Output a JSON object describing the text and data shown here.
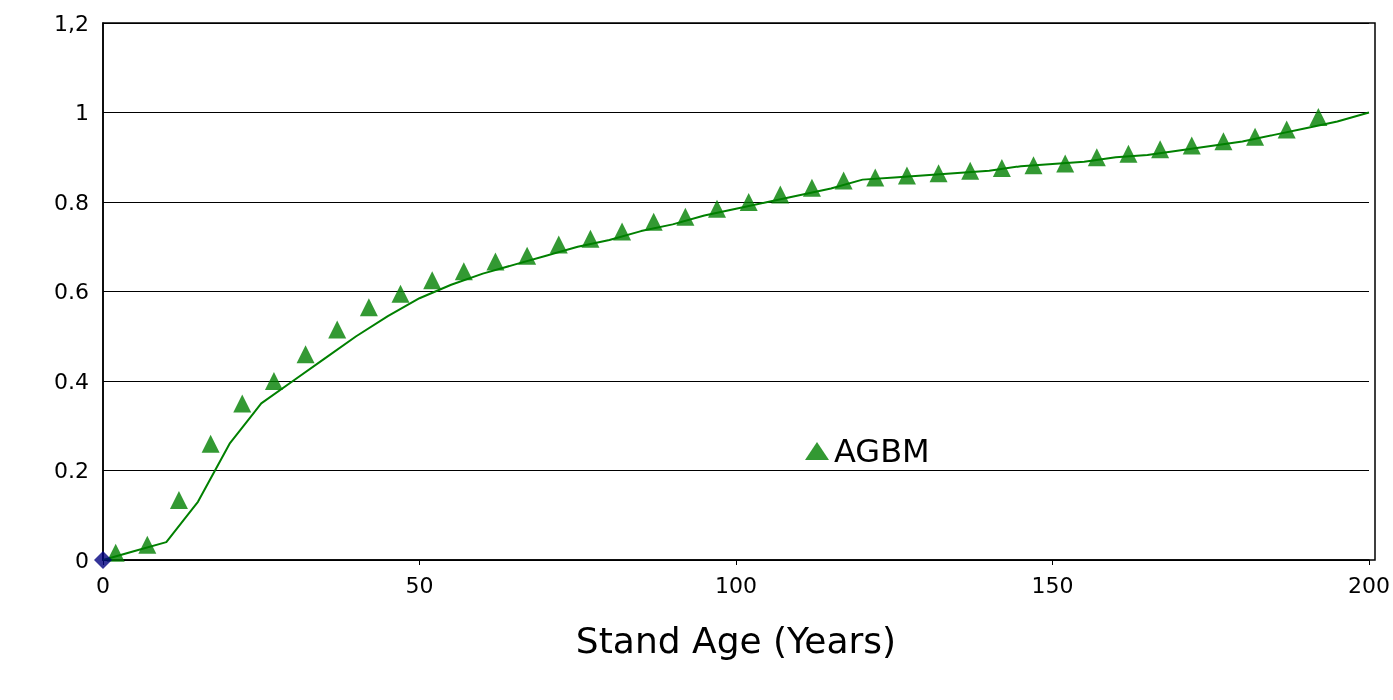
{
  "chart_data": {
    "type": "scatter",
    "xlabel": "Stand Age (Years)",
    "xlim": [
      0,
      200
    ],
    "xticks": [
      0,
      50,
      100,
      150,
      200
    ],
    "ylim": [
      0,
      1.2
    ],
    "yticks": [
      0,
      0.2,
      0.4,
      0.6,
      0.8,
      1,
      {
        "value": 1.2,
        "label": "1,2"
      }
    ],
    "grid": "y",
    "legend": "bottom right",
    "series": [
      {
        "name": "AGBM",
        "marker": "triangle",
        "color": "#008000",
        "x": [
          2,
          7,
          12,
          17,
          22,
          27,
          32,
          37,
          42,
          47,
          52,
          57,
          62,
          67,
          72,
          77,
          82,
          87,
          92,
          97,
          102,
          107,
          112,
          117,
          122,
          127,
          132,
          137,
          142,
          147,
          152,
          157,
          162,
          167,
          172,
          177,
          182,
          187,
          192
        ],
        "values": [
          0.016,
          0.034,
          0.134,
          0.26,
          0.35,
          0.4,
          0.46,
          0.515,
          0.565,
          0.595,
          0.625,
          0.645,
          0.667,
          0.68,
          0.705,
          0.718,
          0.734,
          0.756,
          0.767,
          0.785,
          0.8,
          0.817,
          0.832,
          0.848,
          0.855,
          0.859,
          0.864,
          0.87,
          0.876,
          0.882,
          0.886,
          0.9,
          0.908,
          0.918,
          0.926,
          0.936,
          0.946,
          0.962,
          0.99
        ]
      },
      {
        "type": "line",
        "marker": "none",
        "line_style": "solid",
        "color": "#008000",
        "x": [
          0,
          5,
          10,
          15,
          20,
          25,
          30,
          35,
          40,
          45,
          50,
          55,
          60,
          65,
          70,
          75,
          80,
          85,
          90,
          95,
          100,
          105,
          110,
          115,
          120,
          125,
          130,
          135,
          140,
          145,
          150,
          155,
          160,
          165,
          170,
          175,
          180,
          185,
          190,
          195,
          200
        ],
        "values": [
          0,
          0.02,
          0.04,
          0.13,
          0.26,
          0.35,
          0.4,
          0.45,
          0.5,
          0.545,
          0.585,
          0.615,
          0.64,
          0.66,
          0.68,
          0.7,
          0.715,
          0.735,
          0.75,
          0.77,
          0.785,
          0.8,
          0.815,
          0.83,
          0.85,
          0.855,
          0.86,
          0.865,
          0.87,
          0.88,
          0.885,
          0.89,
          0.9,
          0.905,
          0.915,
          0.925,
          0.935,
          0.95,
          0.965,
          0.98,
          1
        ]
      },
      {
        "type": "scatter",
        "marker": "diamond",
        "color": "#000080",
        "x": [
          0
        ],
        "values": [
          0
        ]
      }
    ]
  }
}
